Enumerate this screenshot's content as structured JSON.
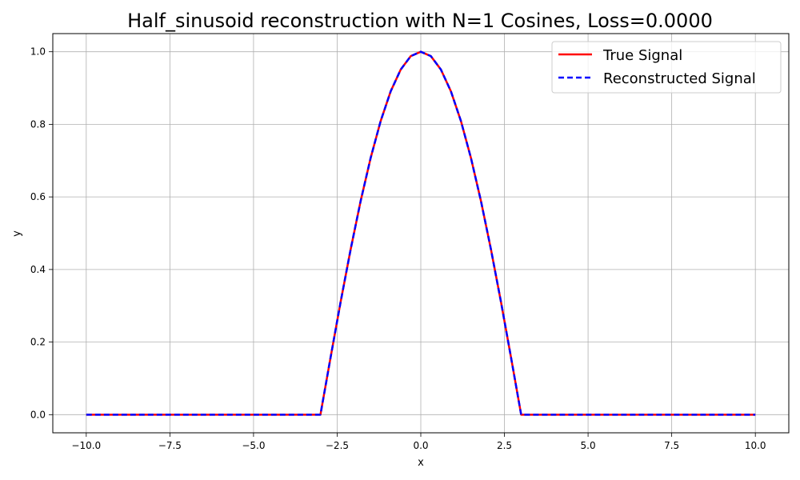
{
  "chart_data": {
    "type": "line",
    "title": "Half_sinusoid reconstruction with N=1 Cosines, Loss=0.0000",
    "xlabel": "x",
    "ylabel": "y",
    "xlim": [
      -11.0,
      11.0
    ],
    "ylim": [
      -0.05,
      1.05
    ],
    "xticks": [
      -10.0,
      -7.5,
      -5.0,
      -2.5,
      0.0,
      2.5,
      5.0,
      7.5,
      10.0
    ],
    "xtick_labels": [
      "−10.0",
      "−7.5",
      "−5.0",
      "−2.5",
      "0.0",
      "2.5",
      "5.0",
      "7.5",
      "10.0"
    ],
    "yticks": [
      0.0,
      0.2,
      0.4,
      0.6,
      0.8,
      1.0
    ],
    "ytick_labels": [
      "0.0",
      "0.2",
      "0.4",
      "0.6",
      "0.8",
      "1.0"
    ],
    "grid": true,
    "legend": "top-right",
    "series": [
      {
        "name": "True Signal",
        "color": "#ff0000",
        "style": "solid",
        "x": [
          -10.0,
          -3.0,
          -2.7,
          -2.4,
          -2.1,
          -1.8,
          -1.5,
          -1.2,
          -0.9,
          -0.6,
          -0.3,
          0.0,
          0.3,
          0.6,
          0.9,
          1.2,
          1.5,
          1.8,
          2.1,
          2.4,
          2.7,
          3.0,
          10.0
        ],
        "y": [
          0.0,
          0.0,
          0.156,
          0.309,
          0.454,
          0.588,
          0.707,
          0.809,
          0.891,
          0.951,
          0.988,
          1.0,
          0.988,
          0.951,
          0.891,
          0.809,
          0.707,
          0.588,
          0.454,
          0.309,
          0.156,
          0.0,
          0.0
        ]
      },
      {
        "name": "Reconstructed Signal",
        "color": "#0000ff",
        "style": "dashed",
        "x": [
          -10.0,
          -3.0,
          -2.7,
          -2.4,
          -2.1,
          -1.8,
          -1.5,
          -1.2,
          -0.9,
          -0.6,
          -0.3,
          0.0,
          0.3,
          0.6,
          0.9,
          1.2,
          1.5,
          1.8,
          2.1,
          2.4,
          2.7,
          3.0,
          10.0
        ],
        "y": [
          0.0,
          0.0,
          0.156,
          0.309,
          0.454,
          0.588,
          0.707,
          0.809,
          0.891,
          0.951,
          0.988,
          1.0,
          0.988,
          0.951,
          0.891,
          0.809,
          0.707,
          0.588,
          0.454,
          0.309,
          0.156,
          0.0,
          0.0
        ]
      }
    ]
  }
}
